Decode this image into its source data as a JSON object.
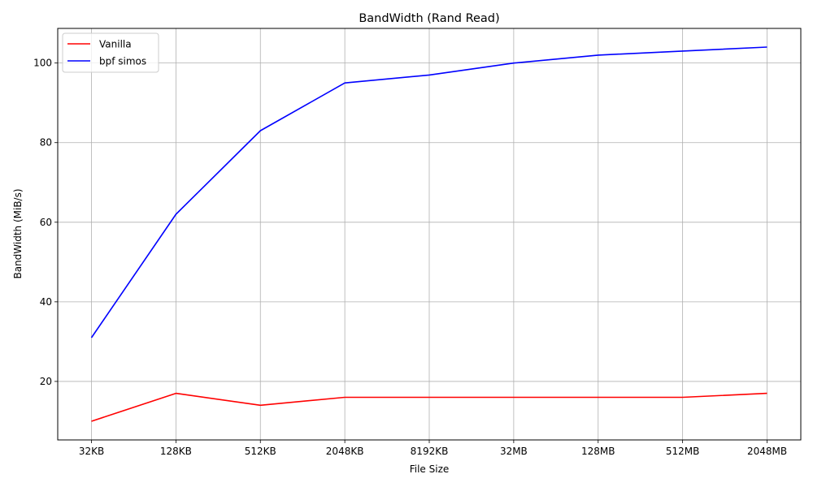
{
  "chart_data": {
    "type": "line",
    "title": "BandWidth (Rand Read)",
    "xlabel": "File Size",
    "ylabel": "BandWidth (MiB/s)",
    "categories": [
      "32KB",
      "128KB",
      "512KB",
      "2048KB",
      "8192KB",
      "32MB",
      "128MB",
      "512MB",
      "2048MB"
    ],
    "series": [
      {
        "name": "Vanilla",
        "color": "#ff0000",
        "values": [
          10,
          17,
          14,
          16,
          16,
          16,
          16,
          16,
          17
        ]
      },
      {
        "name": "bpf simos",
        "color": "#0000ff",
        "values": [
          31,
          62,
          83,
          95,
          97,
          100,
          102,
          103,
          104
        ]
      }
    ],
    "ylim": [
      5.3,
      108.7
    ],
    "yticks": [
      20,
      40,
      60,
      80,
      100
    ],
    "grid": true,
    "legend_position": "top-left"
  }
}
